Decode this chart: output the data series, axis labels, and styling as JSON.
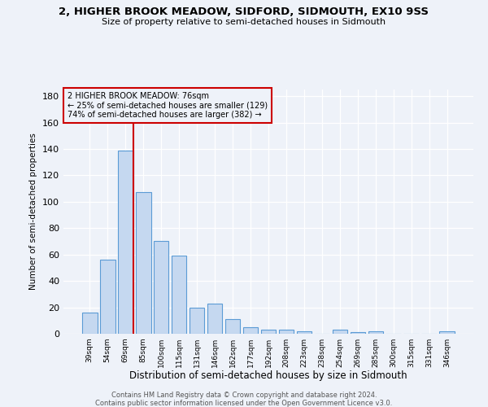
{
  "title1": "2, HIGHER BROOK MEADOW, SIDFORD, SIDMOUTH, EX10 9SS",
  "title2": "Size of property relative to semi-detached houses in Sidmouth",
  "xlabel": "Distribution of semi-detached houses by size in Sidmouth",
  "ylabel": "Number of semi-detached properties",
  "categories": [
    "39sqm",
    "54sqm",
    "69sqm",
    "85sqm",
    "100sqm",
    "115sqm",
    "131sqm",
    "146sqm",
    "162sqm",
    "177sqm",
    "192sqm",
    "208sqm",
    "223sqm",
    "238sqm",
    "254sqm",
    "269sqm",
    "285sqm",
    "300sqm",
    "315sqm",
    "331sqm",
    "346sqm"
  ],
  "values": [
    16,
    56,
    139,
    107,
    70,
    59,
    20,
    23,
    11,
    5,
    3,
    3,
    2,
    0,
    3,
    1,
    2,
    0,
    0,
    0,
    2
  ],
  "bar_color": "#c5d8f0",
  "bar_edge_color": "#5b9bd5",
  "vline_color": "#cc0000",
  "vline_index": 2,
  "annotation_title": "2 HIGHER BROOK MEADOW: 76sqm",
  "annotation_line1": "← 25% of semi-detached houses are smaller (129)",
  "annotation_line2": "74% of semi-detached houses are larger (382) →",
  "annotation_box_color": "#cc0000",
  "ylim": [
    0,
    185
  ],
  "yticks": [
    0,
    20,
    40,
    60,
    80,
    100,
    120,
    140,
    160,
    180
  ],
  "footer1": "Contains HM Land Registry data © Crown copyright and database right 2024.",
  "footer2": "Contains public sector information licensed under the Open Government Licence v3.0.",
  "background_color": "#eef2f9"
}
